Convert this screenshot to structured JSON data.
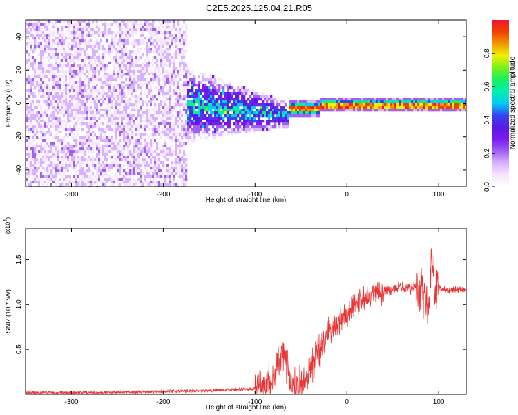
{
  "title": "C2E5.2025.125.04.21.R05",
  "colors": {
    "snr_line": "#e83535",
    "background": "#ffffff",
    "axis": "#000000",
    "colormap": [
      "#ffffff",
      "#f5e6ff",
      "#d9b3ff",
      "#a060f2",
      "#7a1bf0",
      "#5b1be3",
      "#3545f0",
      "#00ccf5",
      "#00f0b0",
      "#18f060",
      "#78f018",
      "#f0f000",
      "#f09a00",
      "#f04000",
      "#f01530"
    ]
  },
  "chart_data": [
    {
      "type": "heatmap",
      "title": "",
      "xlabel": "Height of straight line (km)",
      "ylabel": "Frequency (Hz)",
      "xlim": [
        -350,
        130
      ],
      "ylim": [
        -50,
        50
      ],
      "x_ticks": [
        -300,
        -200,
        -100,
        0,
        100
      ],
      "x_tick_labels": [
        "-300",
        "-200",
        "-100",
        "0",
        "100"
      ],
      "y_ticks": [
        -40,
        -20,
        0,
        20,
        40
      ],
      "y_tick_labels": [
        "-40",
        "-20",
        "0",
        "20",
        "40"
      ],
      "colorbar": {
        "label": "Normalized spectral amplitude",
        "range": [
          0,
          1
        ],
        "ticks": [
          0.0,
          0.2,
          0.4,
          0.6,
          0.8
        ],
        "tick_labels": [
          "0.0",
          "0.2",
          "0.4",
          "0.6",
          "0.8"
        ]
      },
      "features": [
        {
          "x_range": [
            -350,
            -175
          ],
          "freq_range": [
            -50,
            50
          ],
          "amplitude": 0.15,
          "pattern": "broadband noise"
        },
        {
          "x_range": [
            -175,
            -65
          ],
          "freq_range": [
            -20,
            20
          ],
          "amplitude": 0.25,
          "pattern": "broadband converging toward 0 Hz"
        },
        {
          "x_range": [
            -65,
            130
          ],
          "freq_range": [
            -3,
            3
          ],
          "amplitude": 0.95,
          "pattern": "narrow tone near 0 Hz"
        }
      ]
    },
    {
      "type": "line",
      "title": "",
      "xlabel": "Height of straight line (km)",
      "ylabel": "SNR (10 * v/v)",
      "y_multiplier_label": "(x10^4)",
      "xlim": [
        -350,
        130
      ],
      "ylim": [
        0,
        1.85
      ],
      "x_ticks": [
        -300,
        -200,
        -100,
        0,
        100
      ],
      "x_tick_labels": [
        "-300",
        "-200",
        "-100",
        "0",
        "100"
      ],
      "y_ticks": [
        0.5,
        1.0,
        1.5
      ],
      "y_tick_labels": [
        "0.5",
        "1.0",
        "1.5"
      ],
      "series": [
        {
          "x": [
            -350,
            -300,
            -250,
            -200,
            -150,
            -120,
            -100,
            -90,
            -80,
            -75,
            -70,
            -65,
            -60,
            -55,
            -50,
            -45,
            -40,
            -35,
            -30,
            -25,
            -20,
            -15,
            -10,
            -5,
            0,
            5,
            10,
            15,
            20,
            25,
            30,
            40,
            50,
            60,
            70,
            75,
            80,
            85,
            90,
            92,
            95,
            100,
            110,
            120,
            130
          ],
          "y": [
            0.02,
            0.02,
            0.02,
            0.03,
            0.04,
            0.05,
            0.06,
            0.08,
            0.15,
            0.35,
            0.5,
            0.35,
            0.1,
            0.05,
            0.08,
            0.15,
            0.3,
            0.4,
            0.5,
            0.6,
            0.7,
            0.75,
            0.8,
            0.85,
            0.85,
            0.95,
            1.0,
            1.05,
            1.1,
            1.12,
            1.15,
            1.15,
            1.17,
            1.2,
            1.18,
            1.2,
            1.2,
            1.15,
            0.9,
            1.6,
            1.2,
            1.18,
            1.16,
            1.17,
            1.17
          ]
        }
      ]
    }
  ]
}
